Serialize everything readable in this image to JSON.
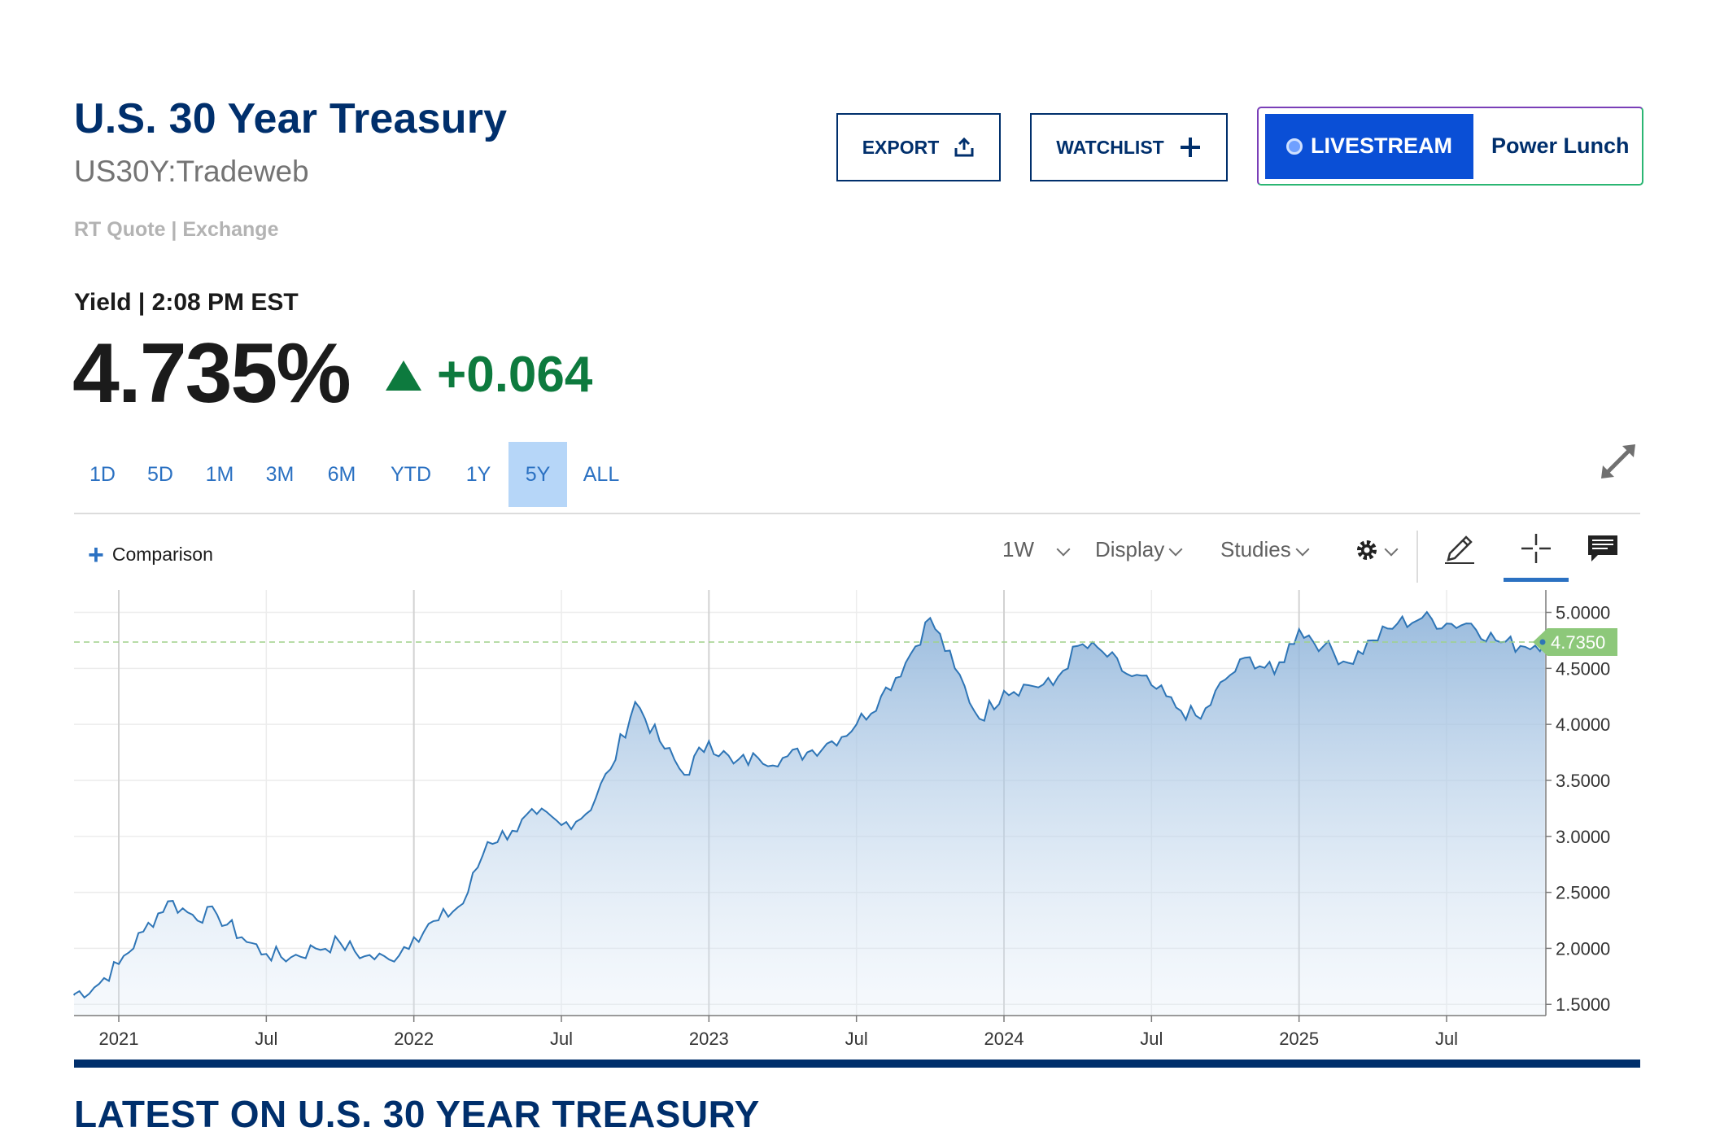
{
  "header": {
    "title": "U.S. 30 Year Treasury",
    "symbol": "US30Y:Tradeweb",
    "quote_source": "RT Quote | Exchange"
  },
  "actions": {
    "export_label": "EXPORT",
    "watchlist_label": "WATCHLIST",
    "livestream_label": "LIVESTREAM",
    "livestream_show": "Power Lunch"
  },
  "quote": {
    "label": "Yield | 2:08 PM EST",
    "price": "4.735%",
    "change": "+0.064",
    "change_color": "#0d7a3e"
  },
  "ranges": {
    "tabs": [
      "1D",
      "5D",
      "1M",
      "3M",
      "6M",
      "YTD",
      "1Y",
      "5Y",
      "ALL"
    ],
    "active": "5Y"
  },
  "toolbar": {
    "comparison_label": "Comparison",
    "interval": "1W",
    "display_label": "Display",
    "studies_label": "Studies",
    "icons": [
      "gear-icon",
      "pencil-icon",
      "crosshair-icon",
      "comment-icon"
    ]
  },
  "chart_data": {
    "type": "area",
    "title": "",
    "xlabel": "",
    "ylabel": "",
    "ylim": [
      1.4,
      5.2
    ],
    "y_ticks": [
      "5.0000",
      "4.5000",
      "4.0000",
      "3.5000",
      "3.0000",
      "2.5000",
      "2.0000",
      "1.5000"
    ],
    "x_ticks": [
      {
        "label": "2021",
        "x": "2021-01"
      },
      {
        "label": "Jul",
        "x": "2021-07"
      },
      {
        "label": "2022",
        "x": "2022-01"
      },
      {
        "label": "Jul",
        "x": "2022-07"
      },
      {
        "label": "2023",
        "x": "2023-01"
      },
      {
        "label": "Jul",
        "x": "2023-07"
      },
      {
        "label": "2024",
        "x": "2024-01"
      },
      {
        "label": "Jul",
        "x": "2024-07"
      },
      {
        "label": "2025",
        "x": "2025-01"
      },
      {
        "label": "Jul",
        "x": "2025-07"
      }
    ],
    "current_value": "4.7350",
    "grid": true,
    "series": [
      {
        "x": [
          "2020-11",
          "2020-12",
          "2021-01",
          "2021-02",
          "2021-03",
          "2021-04",
          "2021-05",
          "2021-06",
          "2021-07",
          "2021-08",
          "2021-09",
          "2021-10",
          "2021-11",
          "2021-12",
          "2022-01",
          "2022-02",
          "2022-03",
          "2022-04",
          "2022-05",
          "2022-06",
          "2022-07",
          "2022-08",
          "2022-09",
          "2022-10",
          "2022-11",
          "2022-12",
          "2023-01",
          "2023-02",
          "2023-03",
          "2023-04",
          "2023-05",
          "2023-06",
          "2023-07",
          "2023-08",
          "2023-09",
          "2023-10",
          "2023-11",
          "2023-12",
          "2024-01",
          "2024-02",
          "2024-03",
          "2024-04",
          "2024-05",
          "2024-06",
          "2024-07",
          "2024-08",
          "2024-09",
          "2024-10",
          "2024-11",
          "2024-12",
          "2025-01",
          "2025-02",
          "2025-03",
          "2025-04",
          "2025-05",
          "2025-06",
          "2025-07",
          "2025-08",
          "2025-09",
          "2025-10",
          "2025-11"
        ],
        "values": [
          1.58,
          1.65,
          1.86,
          2.15,
          2.42,
          2.3,
          2.3,
          2.1,
          1.95,
          1.92,
          2.0,
          2.05,
          1.93,
          1.9,
          2.1,
          2.25,
          2.4,
          2.95,
          3.05,
          3.2,
          3.1,
          3.2,
          3.6,
          4.2,
          3.85,
          3.55,
          3.85,
          3.65,
          3.7,
          3.7,
          3.75,
          3.85,
          4.0,
          4.25,
          4.55,
          4.95,
          4.5,
          4.05,
          4.3,
          4.35,
          4.35,
          4.7,
          4.65,
          4.45,
          4.35,
          4.15,
          4.05,
          4.4,
          4.6,
          4.45,
          4.85,
          4.7,
          4.55,
          4.75,
          4.9,
          4.95,
          4.9,
          4.9,
          4.75,
          4.7,
          4.735
        ]
      }
    ]
  },
  "footer": {
    "latest_heading": "LATEST ON U.S. 30 YEAR TREASURY"
  }
}
